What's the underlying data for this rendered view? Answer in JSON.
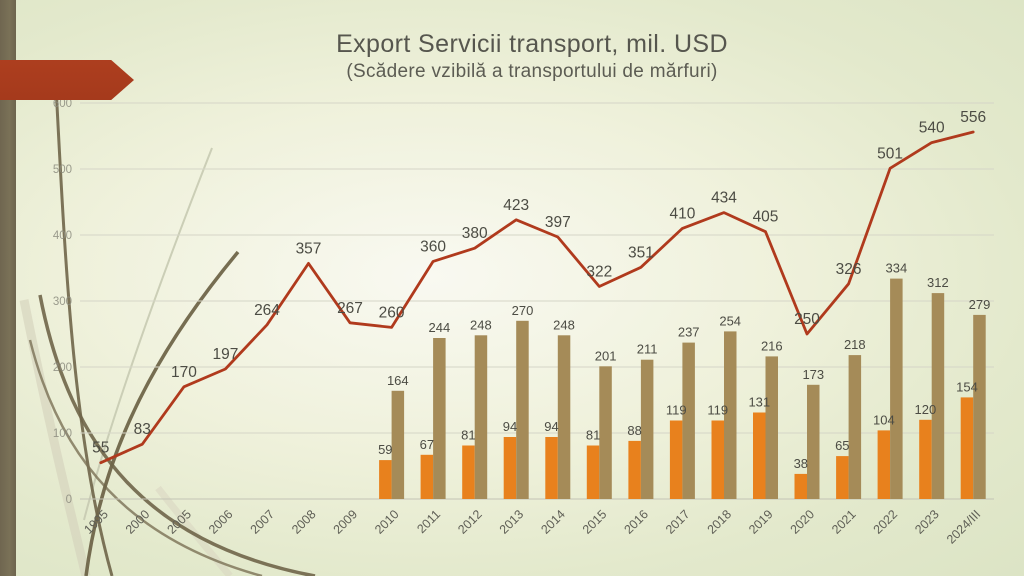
{
  "slide": {
    "title": "Export Servicii transport, mil. USD",
    "subtitle": "(Scădere vzibilă a transportului de mărfuri)"
  },
  "chart_data": {
    "type": "combo (line + grouped bars)",
    "title": "Export Servicii transport, mil. USD",
    "subtitle": "(Scădere vzibilă a transportului de mărfuri)",
    "categories": [
      "1995",
      "2000",
      "2005",
      "2006",
      "2007",
      "2008",
      "2009",
      "2010",
      "2011",
      "2012",
      "2013",
      "2014",
      "2015",
      "2016",
      "2017",
      "2018",
      "2019",
      "2020",
      "2021",
      "2022",
      "2023",
      "2024/III"
    ],
    "series": [
      {
        "name": "total-transport-line",
        "type": "line",
        "color": "#b03a1d",
        "values": [
          55,
          83,
          170,
          197,
          264,
          357,
          267,
          260,
          360,
          380,
          423,
          397,
          322,
          351,
          410,
          434,
          405,
          250,
          326,
          501,
          540,
          556
        ]
      },
      {
        "name": "orange-bars",
        "type": "bar",
        "color": "#e8811d",
        "values": [
          null,
          null,
          null,
          null,
          null,
          null,
          null,
          59,
          67,
          81,
          94,
          94,
          81,
          88,
          119,
          119,
          131,
          38,
          65,
          104,
          120,
          154
        ]
      },
      {
        "name": "tan-bars",
        "type": "bar",
        "color": "#a58b58",
        "values": [
          null,
          null,
          null,
          null,
          null,
          null,
          null,
          164,
          244,
          248,
          270,
          248,
          201,
          211,
          237,
          254,
          216,
          173,
          218,
          334,
          312,
          279
        ]
      }
    ],
    "xlabel": "",
    "ylabel": "",
    "ylim": [
      0,
      600
    ],
    "yticks": [
      0,
      100,
      200,
      300,
      400,
      500,
      600
    ],
    "grid": true,
    "legend_position": "none",
    "data_labels": true
  },
  "decor": {
    "arrow_color": "#a53a1c",
    "stripe_color": "#6f6650",
    "label_color": "#4c4c44",
    "axis_label_color": "#5f5f56",
    "ytick_color": "#8b8b7e"
  }
}
